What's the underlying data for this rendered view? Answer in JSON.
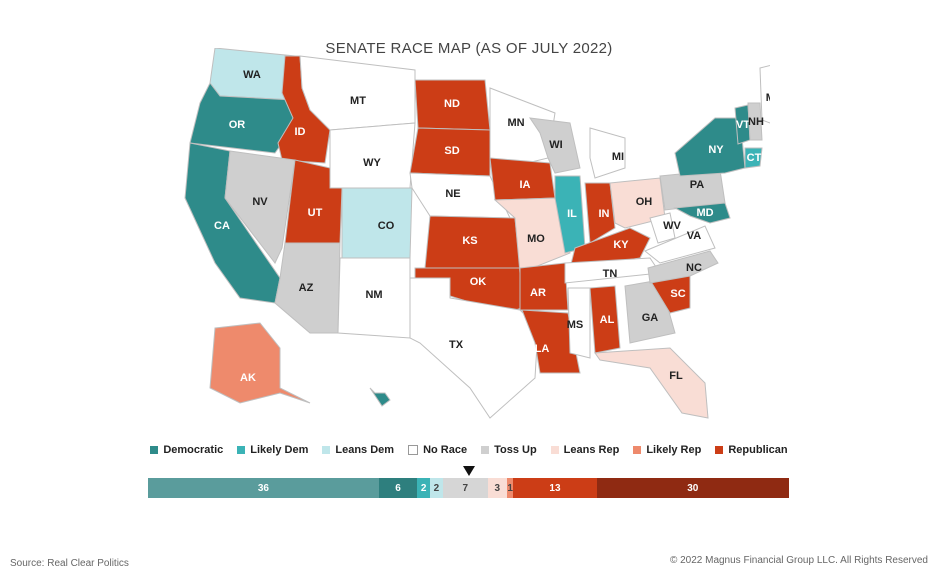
{
  "title": "SENATE RACE MAP (AS OF JULY 2022)",
  "colors": {
    "democratic": "#2e8b8a",
    "likely_dem": "#3bb3b6",
    "leans_dem": "#bfe6ea",
    "no_race": "#ffffff",
    "toss_up": "#cfcfcf",
    "leans_rep": "#f9ddd5",
    "likely_rep": "#ee8a6c",
    "republican": "#cc3d16"
  },
  "legend": [
    {
      "label": "Democratic",
      "key": "democratic"
    },
    {
      "label": "Likely Dem",
      "key": "likely_dem"
    },
    {
      "label": "Leans Dem",
      "key": "leans_dem"
    },
    {
      "label": "No Race",
      "key": "no_race"
    },
    {
      "label": "Toss Up",
      "key": "toss_up"
    },
    {
      "label": "Leans Rep",
      "key": "leans_rep"
    },
    {
      "label": "Likely Rep",
      "key": "likely_rep"
    },
    {
      "label": "Republican",
      "key": "republican"
    }
  ],
  "states": [
    {
      "abbr": "WA",
      "status": "leans_dem"
    },
    {
      "abbr": "OR",
      "status": "democratic"
    },
    {
      "abbr": "CA",
      "status": "democratic"
    },
    {
      "abbr": "ID",
      "status": "republican"
    },
    {
      "abbr": "NV",
      "status": "toss_up"
    },
    {
      "abbr": "MT",
      "status": "no_race"
    },
    {
      "abbr": "WY",
      "status": "no_race"
    },
    {
      "abbr": "UT",
      "status": "republican"
    },
    {
      "abbr": "AZ",
      "status": "toss_up"
    },
    {
      "abbr": "CO",
      "status": "leans_dem"
    },
    {
      "abbr": "NM",
      "status": "no_race"
    },
    {
      "abbr": "ND",
      "status": "republican"
    },
    {
      "abbr": "SD",
      "status": "republican"
    },
    {
      "abbr": "NE",
      "status": "no_race"
    },
    {
      "abbr": "KS",
      "status": "republican"
    },
    {
      "abbr": "OK",
      "status": "republican"
    },
    {
      "abbr": "TX",
      "status": "no_race"
    },
    {
      "abbr": "MN",
      "status": "no_race"
    },
    {
      "abbr": "IA",
      "status": "republican"
    },
    {
      "abbr": "MO",
      "status": "leans_rep"
    },
    {
      "abbr": "AR",
      "status": "republican"
    },
    {
      "abbr": "LA",
      "status": "republican"
    },
    {
      "abbr": "WI",
      "status": "toss_up"
    },
    {
      "abbr": "IL",
      "status": "likely_dem"
    },
    {
      "abbr": "MI",
      "status": "no_race"
    },
    {
      "abbr": "IN",
      "status": "republican"
    },
    {
      "abbr": "OH",
      "status": "leans_rep"
    },
    {
      "abbr": "KY",
      "status": "republican"
    },
    {
      "abbr": "TN",
      "status": "no_race"
    },
    {
      "abbr": "MS",
      "status": "no_race"
    },
    {
      "abbr": "AL",
      "status": "republican"
    },
    {
      "abbr": "GA",
      "status": "toss_up"
    },
    {
      "abbr": "FL",
      "status": "leans_rep"
    },
    {
      "abbr": "SC",
      "status": "republican"
    },
    {
      "abbr": "NC",
      "status": "toss_up"
    },
    {
      "abbr": "VA",
      "status": "no_race"
    },
    {
      "abbr": "WV",
      "status": "no_race"
    },
    {
      "abbr": "PA",
      "status": "toss_up"
    },
    {
      "abbr": "NY",
      "status": "democratic"
    },
    {
      "abbr": "MD",
      "status": "democratic"
    },
    {
      "abbr": "VT",
      "status": "democratic"
    },
    {
      "abbr": "NH",
      "status": "toss_up"
    },
    {
      "abbr": "ME",
      "status": "no_race"
    },
    {
      "abbr": "CT",
      "status": "likely_dem"
    },
    {
      "abbr": "AK",
      "status": "likely_rep"
    },
    {
      "abbr": "HI",
      "status": "democratic"
    }
  ],
  "seat_bar": [
    {
      "value": 36,
      "color": "#5a9c9c",
      "text_color": "#ffffff"
    },
    {
      "value": 6,
      "color": "#2e7f7e",
      "text_color": "#ffffff"
    },
    {
      "value": 2,
      "color": "#3bb3b6",
      "text_color": "#ffffff"
    },
    {
      "value": 2,
      "color": "#bfe6ea",
      "text_color": "#444444"
    },
    {
      "value": 7,
      "color": "#d6d6d6",
      "text_color": "#444444"
    },
    {
      "value": 3,
      "color": "#f9ddd5",
      "text_color": "#444444"
    },
    {
      "value": 1,
      "color": "#ee8a6c",
      "text_color": "#444444"
    },
    {
      "value": 13,
      "color": "#cc3d16",
      "text_color": "#ffffff"
    },
    {
      "value": 30,
      "color": "#8f2a12",
      "text_color": "#ffffff"
    }
  ],
  "source": "Source: Real Clear Politics",
  "copyright": "© 2022 Magnus Financial Group LLC. All Rights Reserved"
}
